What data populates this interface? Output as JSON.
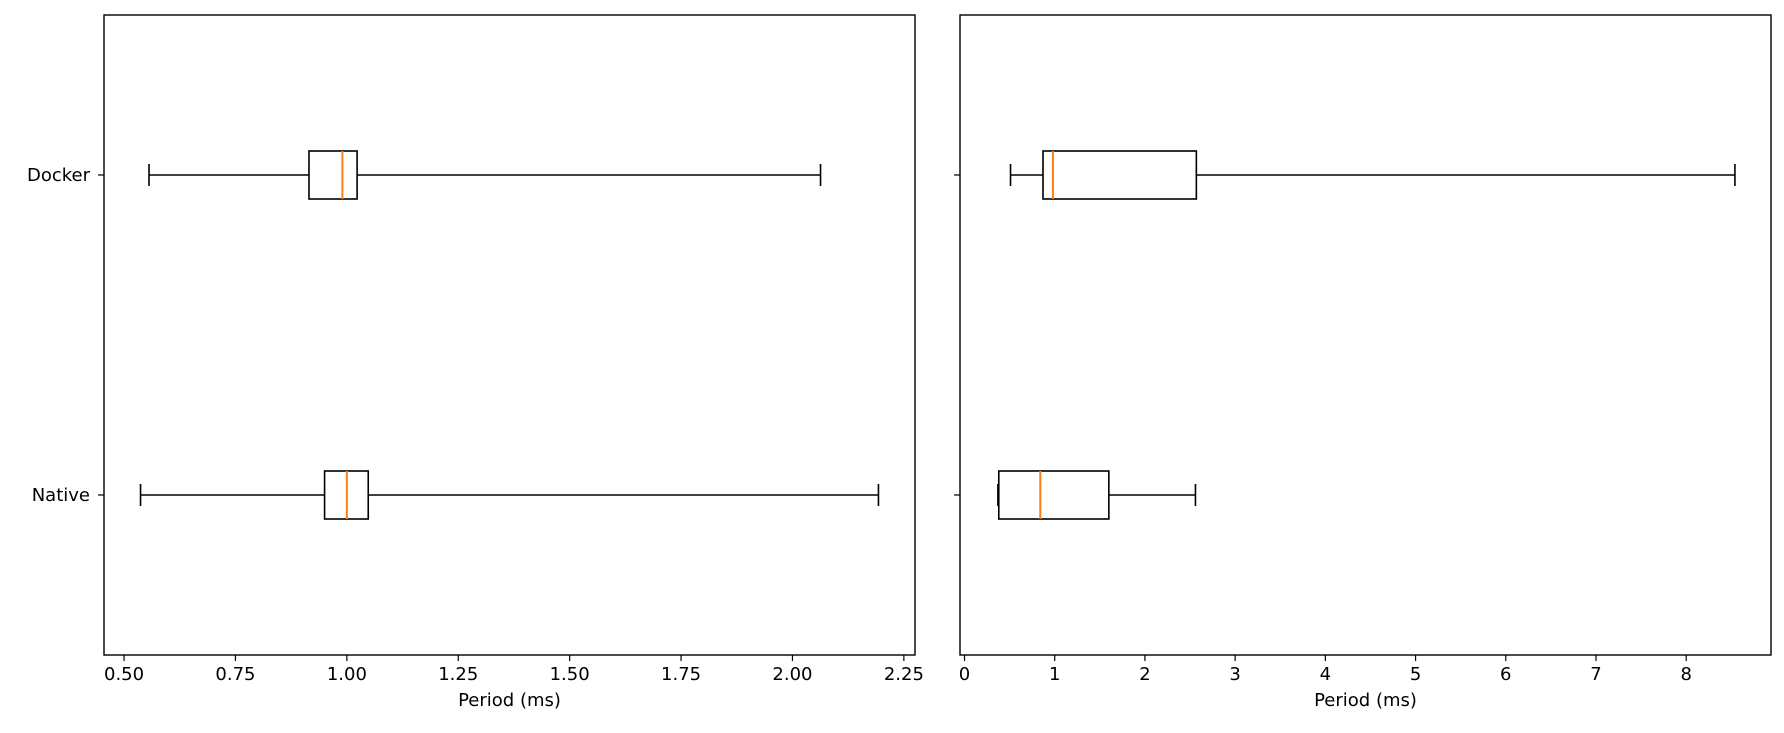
{
  "chart_data": [
    {
      "type": "boxplot",
      "orientation": "horizontal",
      "xlabel": "Period (ms)",
      "ylabel": "",
      "xlim": [
        0.455,
        2.275
      ],
      "xticks": [
        "0.50",
        "0.75",
        "1.00",
        "1.25",
        "1.50",
        "1.75",
        "2.00",
        "2.25"
      ],
      "xtick_values": [
        0.5,
        0.75,
        1.0,
        1.25,
        1.5,
        1.75,
        2.0,
        2.25
      ],
      "categories": [
        "Native",
        "Docker"
      ],
      "boxes": [
        {
          "category": "Native",
          "whisker_low": 0.537,
          "q1": 0.95,
          "median": 1.0,
          "q3": 1.048,
          "whisker_high": 2.193
        },
        {
          "category": "Docker",
          "whisker_low": 0.556,
          "q1": 0.915,
          "median": 0.99,
          "q3": 1.023,
          "whisker_high": 2.063
        }
      ],
      "show_yticklabels": true,
      "grid": false
    },
    {
      "type": "boxplot",
      "orientation": "horizontal",
      "xlabel": "Period (ms)",
      "ylabel": "",
      "xlim": [
        -0.05,
        8.94
      ],
      "xticks": [
        "0",
        "1",
        "2",
        "3",
        "4",
        "5",
        "6",
        "7",
        "8"
      ],
      "xtick_values": [
        0,
        1,
        2,
        3,
        4,
        5,
        6,
        7,
        8
      ],
      "categories": [
        "Native",
        "Docker"
      ],
      "boxes": [
        {
          "category": "Native",
          "whisker_low": 0.37,
          "q1": 0.38,
          "median": 0.84,
          "q3": 1.6,
          "whisker_high": 2.56
        },
        {
          "category": "Docker",
          "whisker_low": 0.51,
          "q1": 0.87,
          "median": 0.98,
          "q3": 2.57,
          "whisker_high": 8.54
        }
      ],
      "show_yticklabels": false,
      "grid": false
    }
  ],
  "colors": {
    "box_edge": "#000000",
    "median": "#ff7f0e",
    "background": "#ffffff"
  }
}
